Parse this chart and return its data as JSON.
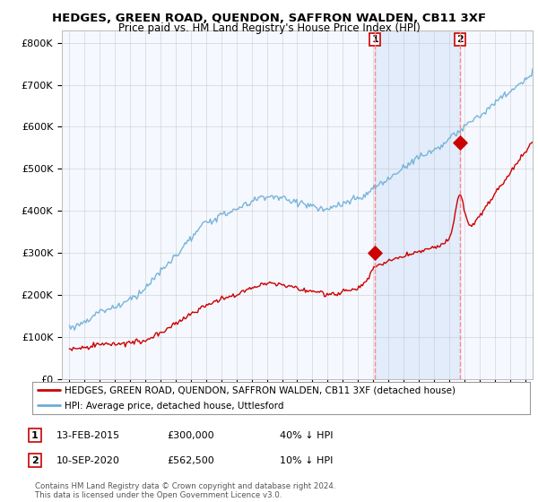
{
  "title": "HEDGES, GREEN ROAD, QUENDON, SAFFRON WALDEN, CB11 3XF",
  "subtitle": "Price paid vs. HM Land Registry's House Price Index (HPI)",
  "ylabel_ticks": [
    "£0",
    "£100K",
    "£200K",
    "£300K",
    "£400K",
    "£500K",
    "£600K",
    "£700K",
    "£800K"
  ],
  "ytick_values": [
    0,
    100000,
    200000,
    300000,
    400000,
    500000,
    600000,
    700000,
    800000
  ],
  "ylim": [
    0,
    830000
  ],
  "xlim_start": 1994.5,
  "xlim_end": 2025.5,
  "hpi_color": "#6baed6",
  "price_color": "#cc0000",
  "shade_color": "#ddeeff",
  "transaction1_date": 2015.12,
  "transaction1_price": 300000,
  "transaction1_label": "1",
  "transaction2_date": 2020.71,
  "transaction2_price": 562500,
  "transaction2_label": "2",
  "legend_text1": "HEDGES, GREEN ROAD, QUENDON, SAFFRON WALDEN, CB11 3XF (detached house)",
  "legend_text2": "HPI: Average price, detached house, Uttlesford",
  "note1_date": "13-FEB-2015",
  "note1_price": "£300,000",
  "note1_pct": "40% ↓ HPI",
  "note2_date": "10-SEP-2020",
  "note2_price": "£562,500",
  "note2_pct": "10% ↓ HPI",
  "footer": "Contains HM Land Registry data © Crown copyright and database right 2024.\nThis data is licensed under the Open Government Licence v3.0.",
  "bg_color": "#ffffff",
  "plot_bg_color": "#f5f8ff",
  "grid_color": "#cccccc"
}
